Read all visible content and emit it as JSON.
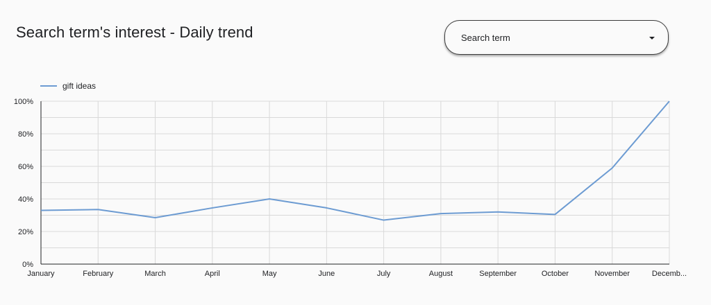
{
  "header": {
    "title": "Search term's interest - Daily trend"
  },
  "dropdown": {
    "label": "Search term",
    "icon": "caret-down-icon"
  },
  "colors": {
    "series": "#6c9bd2",
    "grid": "#d9d9d9",
    "axis": "#202124"
  },
  "chart_data": {
    "type": "line",
    "categories": [
      "January",
      "February",
      "March",
      "April",
      "May",
      "June",
      "July",
      "August",
      "September",
      "October",
      "November",
      "Decemb..."
    ],
    "series": [
      {
        "name": "gift ideas",
        "values": [
          33,
          33.5,
          28.5,
          34.5,
          40,
          34.5,
          27,
          31,
          32,
          30.5,
          59,
          100
        ]
      }
    ],
    "yticks": [
      "0%",
      "20%",
      "40%",
      "60%",
      "80%",
      "100%"
    ],
    "ylim": [
      0,
      100
    ],
    "grid": true,
    "legend": "top-left"
  }
}
